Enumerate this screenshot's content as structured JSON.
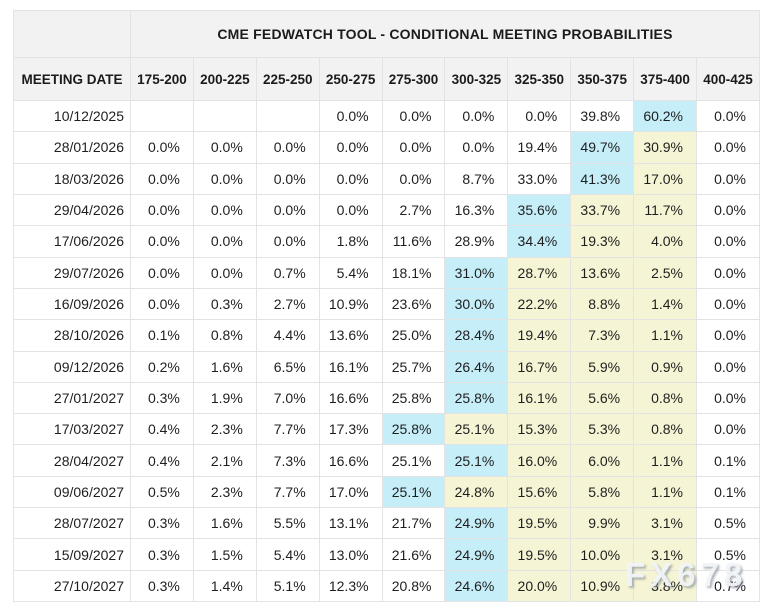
{
  "watermark": "FX678",
  "colors": {
    "highlight_primary_cyan": "#c5eef8",
    "highlight_secondary_yellow": "#f5f5d5",
    "header_background": "#f2f2f2",
    "grid_border": "#e3e3e3"
  },
  "chart_data": {
    "type": "table",
    "title": "CME FEDWATCH TOOL - CONDITIONAL MEETING PROBABILITIES",
    "row_header": "MEETING DATE",
    "columns": [
      "175-200",
      "200-225",
      "225-250",
      "250-275",
      "275-300",
      "300-325",
      "325-350",
      "350-375",
      "375-400",
      "400-425"
    ],
    "highlight_codes": {
      "c": "cyan highest-probability cell",
      "y": "yellow secondary-probability cell",
      "": "no highlight"
    },
    "rows": [
      {
        "date": "10/12/2025",
        "values": [
          "",
          "",
          "",
          "0.0%",
          "0.0%",
          "0.0%",
          "0.0%",
          "39.8%",
          "60.2%",
          "0.0%"
        ],
        "highlights": [
          "",
          "",
          "",
          "",
          "",
          "",
          "",
          "",
          "c",
          ""
        ]
      },
      {
        "date": "28/01/2026",
        "values": [
          "0.0%",
          "0.0%",
          "0.0%",
          "0.0%",
          "0.0%",
          "0.0%",
          "19.4%",
          "49.7%",
          "30.9%",
          "0.0%"
        ],
        "highlights": [
          "",
          "",
          "",
          "",
          "",
          "",
          "",
          "c",
          "y",
          ""
        ]
      },
      {
        "date": "18/03/2026",
        "values": [
          "0.0%",
          "0.0%",
          "0.0%",
          "0.0%",
          "0.0%",
          "8.7%",
          "33.0%",
          "41.3%",
          "17.0%",
          "0.0%"
        ],
        "highlights": [
          "",
          "",
          "",
          "",
          "",
          "",
          "",
          "c",
          "y",
          ""
        ]
      },
      {
        "date": "29/04/2026",
        "values": [
          "0.0%",
          "0.0%",
          "0.0%",
          "0.0%",
          "2.7%",
          "16.3%",
          "35.6%",
          "33.7%",
          "11.7%",
          "0.0%"
        ],
        "highlights": [
          "",
          "",
          "",
          "",
          "",
          "",
          "c",
          "y",
          "y",
          ""
        ]
      },
      {
        "date": "17/06/2026",
        "values": [
          "0.0%",
          "0.0%",
          "0.0%",
          "1.8%",
          "11.6%",
          "28.9%",
          "34.4%",
          "19.3%",
          "4.0%",
          "0.0%"
        ],
        "highlights": [
          "",
          "",
          "",
          "",
          "",
          "",
          "c",
          "y",
          "y",
          ""
        ]
      },
      {
        "date": "29/07/2026",
        "values": [
          "0.0%",
          "0.0%",
          "0.7%",
          "5.4%",
          "18.1%",
          "31.0%",
          "28.7%",
          "13.6%",
          "2.5%",
          "0.0%"
        ],
        "highlights": [
          "",
          "",
          "",
          "",
          "",
          "c",
          "y",
          "y",
          "y",
          ""
        ]
      },
      {
        "date": "16/09/2026",
        "values": [
          "0.0%",
          "0.3%",
          "2.7%",
          "10.9%",
          "23.6%",
          "30.0%",
          "22.2%",
          "8.8%",
          "1.4%",
          "0.0%"
        ],
        "highlights": [
          "",
          "",
          "",
          "",
          "",
          "c",
          "y",
          "y",
          "y",
          ""
        ]
      },
      {
        "date": "28/10/2026",
        "values": [
          "0.1%",
          "0.8%",
          "4.4%",
          "13.6%",
          "25.0%",
          "28.4%",
          "19.4%",
          "7.3%",
          "1.1%",
          "0.0%"
        ],
        "highlights": [
          "",
          "",
          "",
          "",
          "",
          "c",
          "y",
          "y",
          "y",
          ""
        ]
      },
      {
        "date": "09/12/2026",
        "values": [
          "0.2%",
          "1.6%",
          "6.5%",
          "16.1%",
          "25.7%",
          "26.4%",
          "16.7%",
          "5.9%",
          "0.9%",
          "0.0%"
        ],
        "highlights": [
          "",
          "",
          "",
          "",
          "",
          "c",
          "y",
          "y",
          "y",
          ""
        ]
      },
      {
        "date": "27/01/2027",
        "values": [
          "0.3%",
          "1.9%",
          "7.0%",
          "16.6%",
          "25.8%",
          "25.8%",
          "16.1%",
          "5.6%",
          "0.8%",
          "0.0%"
        ],
        "highlights": [
          "",
          "",
          "",
          "",
          "",
          "c",
          "y",
          "y",
          "y",
          ""
        ]
      },
      {
        "date": "17/03/2027",
        "values": [
          "0.4%",
          "2.3%",
          "7.7%",
          "17.3%",
          "25.8%",
          "25.1%",
          "15.3%",
          "5.3%",
          "0.8%",
          "0.0%"
        ],
        "highlights": [
          "",
          "",
          "",
          "",
          "c",
          "y",
          "y",
          "y",
          "y",
          ""
        ]
      },
      {
        "date": "28/04/2027",
        "values": [
          "0.4%",
          "2.1%",
          "7.3%",
          "16.6%",
          "25.1%",
          "25.1%",
          "16.0%",
          "6.0%",
          "1.1%",
          "0.1%"
        ],
        "highlights": [
          "",
          "",
          "",
          "",
          "",
          "c",
          "y",
          "y",
          "y",
          ""
        ]
      },
      {
        "date": "09/06/2027",
        "values": [
          "0.5%",
          "2.3%",
          "7.7%",
          "17.0%",
          "25.1%",
          "24.8%",
          "15.6%",
          "5.8%",
          "1.1%",
          "0.1%"
        ],
        "highlights": [
          "",
          "",
          "",
          "",
          "c",
          "y",
          "y",
          "y",
          "y",
          ""
        ]
      },
      {
        "date": "28/07/2027",
        "values": [
          "0.3%",
          "1.6%",
          "5.5%",
          "13.1%",
          "21.7%",
          "24.9%",
          "19.5%",
          "9.9%",
          "3.1%",
          "0.5%"
        ],
        "highlights": [
          "",
          "",
          "",
          "",
          "",
          "c",
          "y",
          "y",
          "y",
          ""
        ]
      },
      {
        "date": "15/09/2027",
        "values": [
          "0.3%",
          "1.5%",
          "5.4%",
          "13.0%",
          "21.6%",
          "24.9%",
          "19.5%",
          "10.0%",
          "3.1%",
          "0.5%"
        ],
        "highlights": [
          "",
          "",
          "",
          "",
          "",
          "c",
          "y",
          "y",
          "y",
          ""
        ]
      },
      {
        "date": "27/10/2027",
        "values": [
          "0.3%",
          "1.4%",
          "5.1%",
          "12.3%",
          "20.8%",
          "24.6%",
          "20.0%",
          "10.9%",
          "3.8%",
          "0.7%"
        ],
        "highlights": [
          "",
          "",
          "",
          "",
          "",
          "c",
          "y",
          "y",
          "y",
          ""
        ]
      }
    ]
  }
}
